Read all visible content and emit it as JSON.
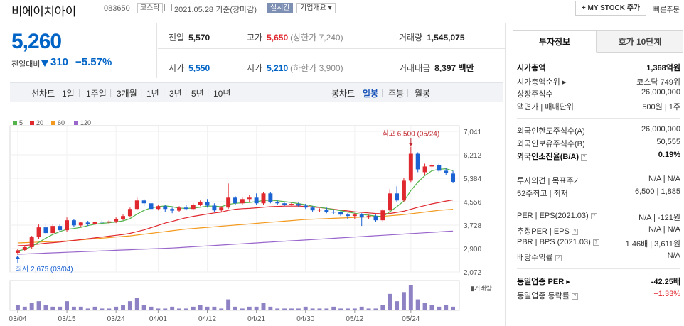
{
  "header": {
    "name": "비에이치아이",
    "code": "083650",
    "market": "코스닥",
    "date": "2021.05.28 기준(장마감)",
    "realtime": "실시간",
    "overview": "기업개요 ▾",
    "mystock": "+ MY STOCK 추가",
    "quick": "빠른주문"
  },
  "price": {
    "current": "5,260",
    "change_label": "전일대비",
    "change": "310",
    "change_pct": "−5.57%"
  },
  "quote": {
    "prev_label": "전일",
    "prev": "5,570",
    "high_label": "고가",
    "high": "5,650",
    "upper": "(상한가 7,240)",
    "volume_label": "거래량",
    "volume": "1,545,075",
    "open_label": "시가",
    "open": "5,550",
    "low_label": "저가",
    "low": "5,210",
    "lower": "(하한가 3,900)",
    "amount_label": "거래대금",
    "amount": "8,397 백만"
  },
  "chart_tabs": {
    "line_label": "선차트",
    "periods": [
      "1일",
      "1주일",
      "3개월",
      "1년",
      "3년",
      "5년",
      "10년"
    ],
    "candle_label": "봉차트",
    "candles": [
      "일봉",
      "주봉",
      "월봉"
    ],
    "candle_active": "일봉"
  },
  "chart_data": {
    "type": "candlestick",
    "legend": [
      {
        "name": "5",
        "color": "#52b44a"
      },
      {
        "name": "20",
        "color": "#e0282f"
      },
      {
        "name": "60",
        "color": "#f39a1e"
      },
      {
        "name": "120",
        "color": "#9966cc"
      }
    ],
    "y_ticks": [
      "7,041",
      "6,212",
      "5,384",
      "4,556",
      "3,728",
      "2,900",
      "2,072"
    ],
    "ylim": [
      2072,
      7041
    ],
    "x_ticks": [
      "03/04",
      "03/15",
      "03/24",
      "04/01",
      "04/12",
      "04/21",
      "04/30",
      "05/12",
      "05/24"
    ],
    "x_tick_index": [
      0,
      7,
      14,
      20,
      27,
      34,
      41,
      48,
      56
    ],
    "annotations": {
      "high": "최고 6,500 (05/24)",
      "low": "최저 2,675 (03/04)"
    },
    "volume_label": "거래량",
    "candles": [
      {
        "o": 2750,
        "h": 2900,
        "c": 2840,
        "l": 2675
      },
      {
        "o": 2850,
        "h": 3000,
        "c": 2950,
        "l": 2800
      },
      {
        "o": 2950,
        "h": 3350,
        "c": 3300,
        "l": 2900
      },
      {
        "o": 3300,
        "h": 3750,
        "c": 3650,
        "l": 3250
      },
      {
        "o": 3650,
        "h": 3800,
        "c": 3450,
        "l": 3400
      },
      {
        "o": 3450,
        "h": 3750,
        "c": 3700,
        "l": 3400
      },
      {
        "o": 3700,
        "h": 3750,
        "c": 3550,
        "l": 3500
      },
      {
        "o": 3550,
        "h": 4000,
        "c": 3900,
        "l": 3500
      },
      {
        "o": 3900,
        "h": 3950,
        "c": 3720,
        "l": 3650
      },
      {
        "o": 3720,
        "h": 3850,
        "c": 3820,
        "l": 3650
      },
      {
        "o": 3820,
        "h": 3880,
        "c": 3760,
        "l": 3700
      },
      {
        "o": 3760,
        "h": 3900,
        "c": 3850,
        "l": 3700
      },
      {
        "o": 3850,
        "h": 3900,
        "c": 3820,
        "l": 3750
      },
      {
        "o": 3820,
        "h": 3900,
        "c": 3860,
        "l": 3780
      },
      {
        "o": 3860,
        "h": 4000,
        "c": 3950,
        "l": 3800
      },
      {
        "o": 3950,
        "h": 4100,
        "c": 4050,
        "l": 3900
      },
      {
        "o": 4050,
        "h": 4350,
        "c": 4300,
        "l": 4000
      },
      {
        "o": 4300,
        "h": 4700,
        "c": 4600,
        "l": 4250
      },
      {
        "o": 4600,
        "h": 4650,
        "c": 4500,
        "l": 4400
      },
      {
        "o": 4500,
        "h": 4550,
        "c": 4300,
        "l": 4250
      },
      {
        "o": 4300,
        "h": 4450,
        "c": 4400,
        "l": 4250
      },
      {
        "o": 4400,
        "h": 4450,
        "c": 4300,
        "l": 4200
      },
      {
        "o": 4300,
        "h": 4350,
        "c": 4240,
        "l": 4150
      },
      {
        "o": 4240,
        "h": 4400,
        "c": 4350,
        "l": 4200
      },
      {
        "o": 4350,
        "h": 4450,
        "c": 4300,
        "l": 4250
      },
      {
        "o": 4300,
        "h": 4500,
        "c": 4450,
        "l": 4250
      },
      {
        "o": 4450,
        "h": 4600,
        "c": 4550,
        "l": 4400
      },
      {
        "o": 4550,
        "h": 4650,
        "c": 4420,
        "l": 4350
      },
      {
        "o": 4420,
        "h": 4500,
        "c": 4250,
        "l": 4200
      },
      {
        "o": 4250,
        "h": 4400,
        "c": 4350,
        "l": 4200
      },
      {
        "o": 4350,
        "h": 5200,
        "c": 4700,
        "l": 4300
      },
      {
        "o": 4700,
        "h": 4750,
        "c": 4500,
        "l": 4450
      },
      {
        "o": 4500,
        "h": 4700,
        "c": 4650,
        "l": 4450
      },
      {
        "o": 4650,
        "h": 4800,
        "c": 4700,
        "l": 4550
      },
      {
        "o": 4700,
        "h": 4850,
        "c": 4500,
        "l": 4450
      },
      {
        "o": 4500,
        "h": 4900,
        "c": 4850,
        "l": 4450
      },
      {
        "o": 4850,
        "h": 4900,
        "c": 4550,
        "l": 4500
      },
      {
        "o": 4550,
        "h": 4600,
        "c": 4500,
        "l": 4450
      },
      {
        "o": 4500,
        "h": 4520,
        "c": 4450,
        "l": 4400
      },
      {
        "o": 4450,
        "h": 4520,
        "c": 4480,
        "l": 4420
      },
      {
        "o": 4480,
        "h": 4530,
        "c": 4420,
        "l": 4380
      },
      {
        "o": 4420,
        "h": 4480,
        "c": 4350,
        "l": 4300
      },
      {
        "o": 4350,
        "h": 4400,
        "c": 4250,
        "l": 4200
      },
      {
        "o": 4250,
        "h": 4320,
        "c": 4280,
        "l": 4200
      },
      {
        "o": 4280,
        "h": 4350,
        "c": 4200,
        "l": 4150
      },
      {
        "o": 4200,
        "h": 4260,
        "c": 4180,
        "l": 4120
      },
      {
        "o": 4180,
        "h": 4220,
        "c": 4100,
        "l": 4050
      },
      {
        "o": 4100,
        "h": 4150,
        "c": 4050,
        "l": 3950
      },
      {
        "o": 4050,
        "h": 4150,
        "c": 4100,
        "l": 3950
      },
      {
        "o": 4100,
        "h": 4150,
        "c": 4000,
        "l": 3700
      },
      {
        "o": 4000,
        "h": 4100,
        "c": 4050,
        "l": 3950
      },
      {
        "o": 4050,
        "h": 4100,
        "c": 3900,
        "l": 3850
      },
      {
        "o": 3900,
        "h": 4300,
        "c": 4250,
        "l": 3850
      },
      {
        "o": 4250,
        "h": 5000,
        "c": 4850,
        "l": 4200
      },
      {
        "o": 4850,
        "h": 5100,
        "c": 4600,
        "l": 4550
      },
      {
        "o": 4600,
        "h": 5400,
        "c": 5300,
        "l": 4550
      },
      {
        "o": 5300,
        "h": 6500,
        "c": 6250,
        "l": 5250
      },
      {
        "o": 6250,
        "h": 6300,
        "c": 5700,
        "l": 5600
      },
      {
        "o": 5600,
        "h": 5900,
        "c": 5800,
        "l": 5500
      },
      {
        "o": 5800,
        "h": 5950,
        "c": 5850,
        "l": 5700
      },
      {
        "o": 5850,
        "h": 5900,
        "c": 5650,
        "l": 5600
      },
      {
        "o": 5650,
        "h": 5750,
        "c": 5570,
        "l": 5500
      },
      {
        "o": 5550,
        "h": 5650,
        "c": 5260,
        "l": 5210
      }
    ],
    "volumes": [
      3,
      2,
      4,
      5,
      3,
      2,
      2,
      5,
      2,
      2,
      1,
      2,
      1,
      1,
      2,
      3,
      5,
      7,
      3,
      2,
      1,
      1,
      2,
      1,
      1,
      2,
      3,
      2,
      2,
      1,
      6,
      2,
      1,
      2,
      2,
      4,
      2,
      1,
      1,
      1,
      1,
      2,
      1,
      1,
      1,
      2,
      1,
      1,
      1,
      2,
      1,
      1,
      3,
      9,
      5,
      10,
      14,
      6,
      4,
      3,
      2,
      3,
      2
    ],
    "ma5": [
      2820,
      2870,
      2980,
      3120,
      3270,
      3400,
      3500,
      3580,
      3610,
      3650,
      3710,
      3760,
      3790,
      3810,
      3840,
      3880,
      3960,
      4120,
      4250,
      4340,
      4380,
      4410,
      4380,
      4330,
      4320,
      4330,
      4360,
      4400,
      4400,
      4380,
      4460,
      4500,
      4520,
      4530,
      4560,
      4600,
      4610,
      4590,
      4560,
      4530,
      4490,
      4450,
      4400,
      4360,
      4320,
      4280,
      4240,
      4190,
      4150,
      4110,
      4080,
      4050,
      4030,
      4200,
      4380,
      4580,
      4950,
      5250,
      5480,
      5650,
      5700,
      5720,
      5650
    ],
    "ma20": [
      3000,
      3010,
      3030,
      3060,
      3090,
      3110,
      3130,
      3160,
      3190,
      3220,
      3250,
      3280,
      3310,
      3340,
      3370,
      3400,
      3440,
      3500,
      3560,
      3640,
      3720,
      3800,
      3860,
      3930,
      3990,
      4040,
      4080,
      4120,
      4160,
      4190,
      4250,
      4290,
      4310,
      4320,
      4340,
      4360,
      4380,
      4390,
      4400,
      4400,
      4400,
      4390,
      4370,
      4350,
      4320,
      4290,
      4260,
      4230,
      4200,
      4180,
      4160,
      4140,
      4130,
      4140,
      4180,
      4220,
      4290,
      4360,
      4420,
      4480,
      4530,
      4580,
      4620
    ],
    "ma60": [
      3100,
      3110,
      3120,
      3130,
      3140,
      3150,
      3160,
      3170,
      3190,
      3210,
      3230,
      3250,
      3270,
      3290,
      3310,
      3330,
      3350,
      3380,
      3410,
      3440,
      3470,
      3500,
      3530,
      3560,
      3590,
      3610,
      3630,
      3650,
      3670,
      3690,
      3710,
      3730,
      3750,
      3770,
      3790,
      3810,
      3830,
      3850,
      3870,
      3890,
      3910,
      3930,
      3940,
      3950,
      3960,
      3970,
      3980,
      3990,
      4000,
      4010,
      4020,
      4030,
      4040,
      4060,
      4080,
      4100,
      4130,
      4160,
      4190,
      4220,
      4250,
      4270,
      4290
    ],
    "ma120": [
      2700,
      2710,
      2720,
      2730,
      2740,
      2750,
      2760,
      2770,
      2780,
      2790,
      2800,
      2810,
      2820,
      2830,
      2840,
      2850,
      2860,
      2870,
      2880,
      2890,
      2900,
      2910,
      2920,
      2935,
      2950,
      2965,
      2980,
      2995,
      3010,
      3025,
      3040,
      3055,
      3070,
      3085,
      3100,
      3115,
      3130,
      3145,
      3160,
      3175,
      3190,
      3205,
      3220,
      3235,
      3250,
      3265,
      3280,
      3295,
      3310,
      3325,
      3340,
      3355,
      3370,
      3385,
      3400,
      3415,
      3430,
      3445,
      3460,
      3475,
      3490,
      3505,
      3520
    ]
  },
  "right": {
    "tab_invest": "투자정보",
    "tab_hoga": "호가 10단계",
    "rows": [
      {
        "l": "시가총액",
        "r": "1,368억원",
        "bold": true
      },
      {
        "l": "시가총액순위 ▸",
        "r": "코스닥 749위"
      },
      {
        "l": "상장주식수",
        "r": "26,000,000"
      },
      {
        "l": "액면가 | 매매단위",
        "r": "500원 | 1주"
      },
      {
        "l": "외국인한도주식수(A)",
        "r": "26,000,000"
      },
      {
        "l": "외국인보유주식수(B)",
        "r": "50,555"
      },
      {
        "l": "외국인소진율(B/A)",
        "r": "0.19%",
        "bold": true,
        "q": true
      },
      {
        "l": "투자의견 | 목표주가",
        "r": "N/A | N/A"
      },
      {
        "l": "52주최고 | 최저",
        "r": "6,500 | 1,885"
      },
      {
        "l": "PER | EPS(2021.03)",
        "r": "N/A | -121원",
        "q": true
      },
      {
        "l": "추정PER | EPS",
        "r": "N/A | N/A",
        "q": true
      },
      {
        "l": "PBR | BPS (2021.03)",
        "r": "1.46배 | 3,611원",
        "q": true
      },
      {
        "l": "배당수익률",
        "r": "N/A",
        "q": true
      },
      {
        "l": "동일업종 PER ▸",
        "r": "-42.25배",
        "bold": true
      },
      {
        "l": "동일업종 등락률",
        "r": "+1.33%",
        "q": true,
        "red": true
      }
    ]
  }
}
